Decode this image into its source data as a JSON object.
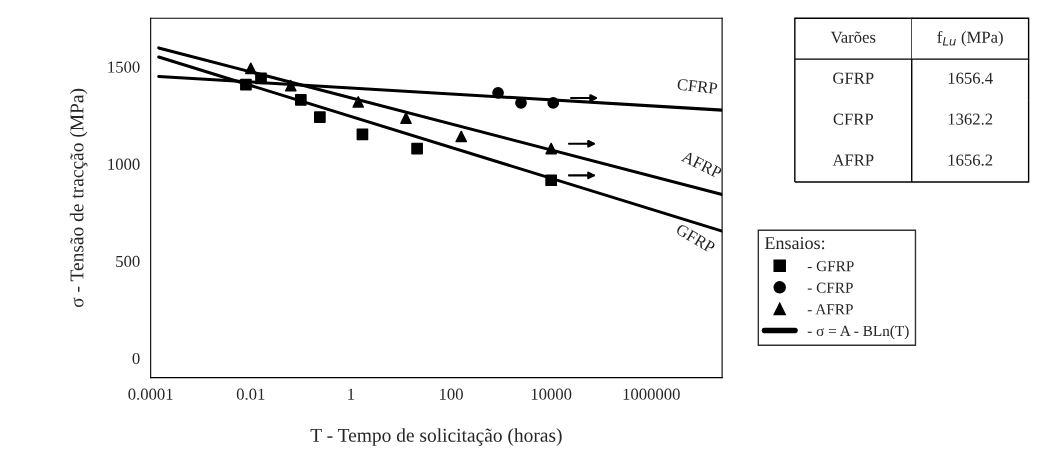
{
  "chart_data": {
    "type": "scatter",
    "xlabel": "T - Tempo de solicitação (horas)",
    "ylabel": "σ - Tensão de tracção (MPa)",
    "legend_title": "Ensaios:",
    "log": "x",
    "xlim": [
      0.0001,
      26000000
    ],
    "ylim": [
      -100,
      1750
    ],
    "xticks": [
      {
        "value": 0.0001,
        "label": "0.0001"
      },
      {
        "value": 0.01,
        "label": "0.01"
      },
      1,
      100,
      10000,
      1000000
    ],
    "yticks": [
      0,
      500,
      1000,
      1500
    ],
    "grid": false,
    "legend": "right",
    "series": [
      {
        "name": "- GFRP",
        "marker": "square",
        "color": "#000000",
        "x": [
          0.008,
          0.016,
          0.1,
          0.24,
          1.7,
          21,
          10000
        ],
        "values": [
          1408,
          1440,
          1330,
          1241,
          1152,
          1079,
          916
        ]
      },
      {
        "name": "- CFRP",
        "marker": "circle",
        "color": "#000000",
        "x": [
          870,
          2500,
          11000
        ],
        "values": [
          1366,
          1314,
          1314
        ]
      },
      {
        "name": "- AFRP",
        "marker": "triangle",
        "color": "#000000",
        "x": [
          0.01,
          0.063,
          1.4,
          12.6,
          160,
          10000
        ],
        "values": [
          1492,
          1403,
          1319,
          1236,
          1141,
          1079
        ]
      },
      {
        "name": "CFRP",
        "type": "line",
        "marker": "none",
        "line_style": "solid",
        "color": "#000000",
        "x": [
          0.000145,
          26000000
        ],
        "values": [
          1450,
          1277
        ]
      },
      {
        "name": "AFRP",
        "type": "line",
        "marker": "none",
        "line_style": "solid",
        "color": "#000000",
        "x": [
          0.000145,
          26000000
        ],
        "values": [
          1597,
          843
        ]
      },
      {
        "name": "GFRP",
        "type": "line",
        "marker": "none",
        "line_style": "solid",
        "color": "#000000",
        "x": [
          0.000145,
          26000000
        ],
        "values": [
          1550,
          654
        ]
      }
    ],
    "annotations": [
      "- σ = A - BLn(T)",
      "Varões",
      "f$_{Lu}$ (MPa)",
      "GFRP",
      "1656.4",
      "CFRP",
      "1362.2",
      "AFRP",
      "1656.2"
    ]
  }
}
